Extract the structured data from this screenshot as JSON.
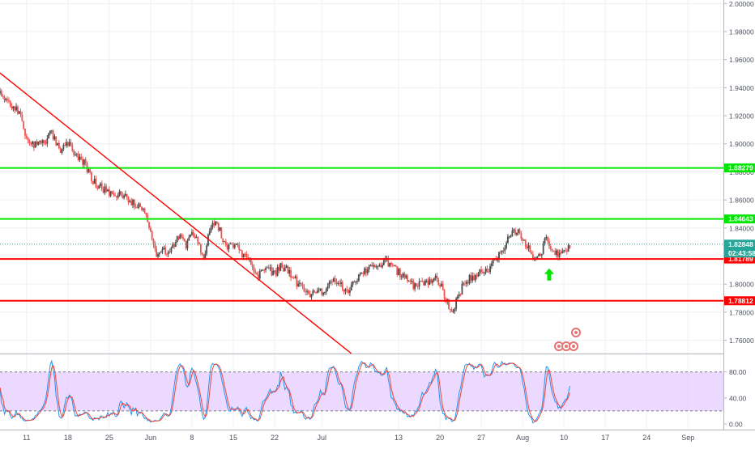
{
  "chart_data": [
    {
      "type": "candlestick",
      "panel": "price",
      "y_ticks": [
        2.0,
        1.98,
        1.96,
        1.94,
        1.92,
        1.9,
        1.88,
        1.86,
        1.84,
        1.82,
        1.8,
        1.78,
        1.76
      ],
      "y_tick_labels": [
        "2.00000",
        "1.98000",
        "1.96000",
        "1.94000",
        "1.92000",
        "1.90000",
        "1.88000",
        "1.86000",
        "1.84000",
        "1.82000",
        "1.80000",
        "1.78000",
        "1.76000"
      ],
      "ylim": [
        1.7505,
        2.0025
      ],
      "x_tick_labels": [
        "11",
        "18",
        "25",
        "Jun",
        "8",
        "15",
        "22",
        "Jul",
        "13",
        "20",
        "27",
        "Aug",
        "10",
        "17",
        "24",
        "Sep"
      ],
      "x_tick_days": [
        0,
        7,
        14,
        21,
        28,
        35,
        42,
        50,
        63,
        70,
        77,
        84,
        91,
        98,
        105,
        112
      ],
      "xlim_days": [
        -4.5,
        118
      ],
      "anchor_closes": [
        [
          -4.5,
          1.936
        ],
        [
          -3,
          1.93
        ],
        [
          -1,
          1.92
        ],
        [
          0,
          1.905
        ],
        [
          1,
          1.9
        ],
        [
          2,
          1.9
        ],
        [
          3,
          1.9
        ],
        [
          4,
          1.91
        ],
        [
          5,
          1.9
        ],
        [
          6,
          1.895
        ],
        [
          7,
          1.9
        ],
        [
          8,
          1.895
        ],
        [
          9,
          1.89
        ],
        [
          10,
          1.885
        ],
        [
          11,
          1.875
        ],
        [
          12,
          1.87
        ],
        [
          13,
          1.868
        ],
        [
          14,
          1.865
        ],
        [
          15,
          1.86
        ],
        [
          16,
          1.865
        ],
        [
          17,
          1.86
        ],
        [
          18,
          1.858
        ],
        [
          19,
          1.855
        ],
        [
          20,
          1.85
        ],
        [
          21,
          1.835
        ],
        [
          22,
          1.82
        ],
        [
          23,
          1.825
        ],
        [
          24,
          1.822
        ],
        [
          25,
          1.828
        ],
        [
          26,
          1.835
        ],
        [
          27,
          1.828
        ],
        [
          28,
          1.838
        ],
        [
          29,
          1.83
        ],
        [
          30,
          1.82
        ],
        [
          31,
          1.838
        ],
        [
          32,
          1.845
        ],
        [
          33,
          1.835
        ],
        [
          34,
          1.825
        ],
        [
          35,
          1.828
        ],
        [
          36,
          1.824
        ],
        [
          37,
          1.82
        ],
        [
          38,
          1.815
        ],
        [
          39,
          1.805
        ],
        [
          40,
          1.81
        ],
        [
          41,
          1.81
        ],
        [
          42,
          1.808
        ],
        [
          43,
          1.812
        ],
        [
          44,
          1.81
        ],
        [
          45,
          1.805
        ],
        [
          46,
          1.8
        ],
        [
          47,
          1.797
        ],
        [
          48,
          1.792
        ],
        [
          49,
          1.795
        ],
        [
          50,
          1.795
        ],
        [
          51,
          1.798
        ],
        [
          52,
          1.804
        ],
        [
          53,
          1.8
        ],
        [
          54,
          1.795
        ],
        [
          55,
          1.797
        ],
        [
          56,
          1.805
        ],
        [
          57,
          1.808
        ],
        [
          58,
          1.812
        ],
        [
          59,
          1.81
        ],
        [
          60,
          1.814
        ],
        [
          61,
          1.816
        ],
        [
          62,
          1.812
        ],
        [
          63,
          1.808
        ],
        [
          64,
          1.805
        ],
        [
          65,
          1.8
        ],
        [
          66,
          1.799
        ],
        [
          67,
          1.802
        ],
        [
          68,
          1.8
        ],
        [
          69,
          1.804
        ],
        [
          70,
          1.8
        ],
        [
          71,
          1.79
        ],
        [
          72,
          1.78
        ],
        [
          73,
          1.79
        ],
        [
          74,
          1.8
        ],
        [
          75,
          1.804
        ],
        [
          76,
          1.806
        ],
        [
          77,
          1.808
        ],
        [
          78,
          1.81
        ],
        [
          79,
          1.815
        ],
        [
          80,
          1.82
        ],
        [
          81,
          1.828
        ],
        [
          82,
          1.835
        ],
        [
          83,
          1.838
        ],
        [
          84,
          1.832
        ],
        [
          85,
          1.826
        ],
        [
          86,
          1.818
        ],
        [
          87,
          1.82
        ],
        [
          88,
          1.833
        ],
        [
          89,
          1.822
        ],
        [
          90,
          1.822
        ],
        [
          91,
          1.824
        ],
        [
          92,
          1.828
        ]
      ],
      "horizontal_lines": [
        {
          "value": 1.88279,
          "color": "#00e600",
          "tag": "1.88279"
        },
        {
          "value": 1.84643,
          "color": "#00e600",
          "tag": "1.84643"
        },
        {
          "value": 1.81789,
          "color": "#ff0000",
          "tag": "1.81789"
        },
        {
          "value": 1.78812,
          "color": "#ff0000",
          "tag": "1.78812"
        }
      ],
      "trendline": {
        "color": "#ff0000",
        "from": [
          -4.5,
          1.9505
        ],
        "to": [
          55,
          1.7505
        ]
      },
      "last_price": {
        "value": 1.82848,
        "label": "1.82848",
        "countdown": "02:43:58",
        "color": "#26a69a"
      },
      "annotations": [
        {
          "type": "arrow-up",
          "color": "#00e600",
          "x_day": 88.5,
          "y": 1.806
        }
      ],
      "colors": {
        "up": "#4b4b4b",
        "down": "#ef5350"
      }
    },
    {
      "type": "line",
      "panel": "stochastic",
      "y_ticks": [
        80,
        40,
        0
      ],
      "y_tick_labels": [
        "80.00",
        "40.00",
        "0.00"
      ],
      "ylim": [
        -7.5,
        107
      ],
      "band": [
        20,
        80
      ],
      "band_color": "#e6ccff",
      "series": [
        {
          "color": "#2196f3"
        },
        {
          "color": "#f44336"
        }
      ]
    }
  ]
}
